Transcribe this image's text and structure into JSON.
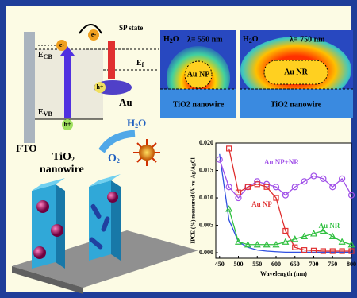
{
  "diagram": {
    "e_top": "e-",
    "e_sp": "e-",
    "sp_state": "SP state",
    "ecb": {
      "main": "E",
      "sub": "CB"
    },
    "ef": {
      "main": "E",
      "sub": "f"
    },
    "h_au": "h+",
    "au": "Au",
    "evb": {
      "main": "E",
      "sub": "VB"
    },
    "h_vb": "h+",
    "fto": "FTO",
    "tio2": {
      "main": "TiO",
      "sub": "2"
    },
    "nanowire": "nanowire",
    "h2o": {
      "main": "H",
      "sub": "2",
      "tail": "O"
    },
    "o2": {
      "main": "O",
      "sub": "2"
    }
  },
  "simulations": [
    {
      "medium": {
        "main": "H",
        "sub": "2",
        "tail": "O"
      },
      "wavelength": "λ= 550 nm",
      "particle": "Au NP",
      "substrate": "TiO2 nanowire"
    },
    {
      "medium": {
        "main": "H",
        "sub": "2",
        "tail": "O"
      },
      "wavelength": "λ= 750 nm",
      "particle": "Au NR",
      "substrate": "TiO2 nanowire"
    }
  ],
  "chart_data": {
    "type": "line",
    "x_label": "Wavelength (nm)",
    "y_label": "IPCE (%) measured 0V vs. Ag/AgCl",
    "x": [
      450,
      475,
      500,
      525,
      550,
      575,
      600,
      625,
      650,
      675,
      700,
      725,
      750,
      775,
      800
    ],
    "xlim": [
      440,
      800
    ],
    "xticks": [
      450,
      500,
      550,
      600,
      650,
      700,
      750,
      800
    ],
    "ylim": [
      -0.001,
      0.02
    ],
    "yticks": [
      {
        "value": 0,
        "label": "0.000"
      },
      0.005,
      {
        "value": 0.01,
        "label": "0.010"
      },
      0.015,
      {
        "value": 0.02,
        "label": "0.020"
      }
    ],
    "series": [
      {
        "color": "#3050e0",
        "values": [
          0.018,
          0.006,
          0.002,
          0.001,
          0.0005,
          0.0003,
          0.0002,
          0.0001,
          0.0001,
          0.0001,
          0.0001,
          0.0001,
          0.0001,
          0.0001,
          0.0001
        ]
      },
      {
        "name": "Au NP+NR",
        "color": "#a050e8",
        "values": [
          0.017,
          0.012,
          0.01,
          0.012,
          0.013,
          0.0125,
          0.012,
          0.0105,
          0.012,
          0.013,
          0.014,
          0.0135,
          0.012,
          0.0135,
          0.0105
        ]
      },
      {
        "name": "Au NP",
        "color": "#e03030",
        "values": [
          null,
          0.019,
          0.011,
          0.012,
          0.0125,
          0.012,
          0.01,
          0.004,
          0.001,
          0.0005,
          0.0004,
          0.0003,
          0.0003,
          0.0003,
          0.0003
        ]
      },
      {
        "name": "Au NR",
        "color": "#30c040",
        "values": [
          null,
          0.008,
          0.002,
          0.0015,
          0.0015,
          0.0015,
          0.0015,
          0.002,
          0.0025,
          0.003,
          0.0035,
          0.004,
          0.003,
          0.002,
          0.0015
        ]
      }
    ]
  }
}
